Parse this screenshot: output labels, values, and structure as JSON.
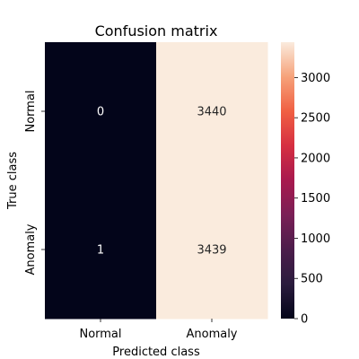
{
  "chart_data": {
    "type": "heatmap",
    "title": "Confusion matrix",
    "xlabel": "Predicted class",
    "ylabel": "True class",
    "x_categories": [
      "Normal",
      "Anomaly"
    ],
    "y_categories": [
      "Normal",
      "Anomaly"
    ],
    "values": [
      [
        0,
        3440
      ],
      [
        1,
        3439
      ]
    ],
    "annotations": [
      [
        "0",
        "3440"
      ],
      [
        "1",
        "3439"
      ]
    ],
    "colorbar": {
      "min": 0,
      "max": 3440,
      "ticks": [
        0,
        500,
        1000,
        1500,
        2000,
        2500,
        3000
      ],
      "tick_labels": [
        "0",
        "500",
        "1000",
        "1500",
        "2000",
        "2500",
        "3000"
      ]
    },
    "colors": {
      "low": "#03051a",
      "high": "#faebdd"
    }
  }
}
